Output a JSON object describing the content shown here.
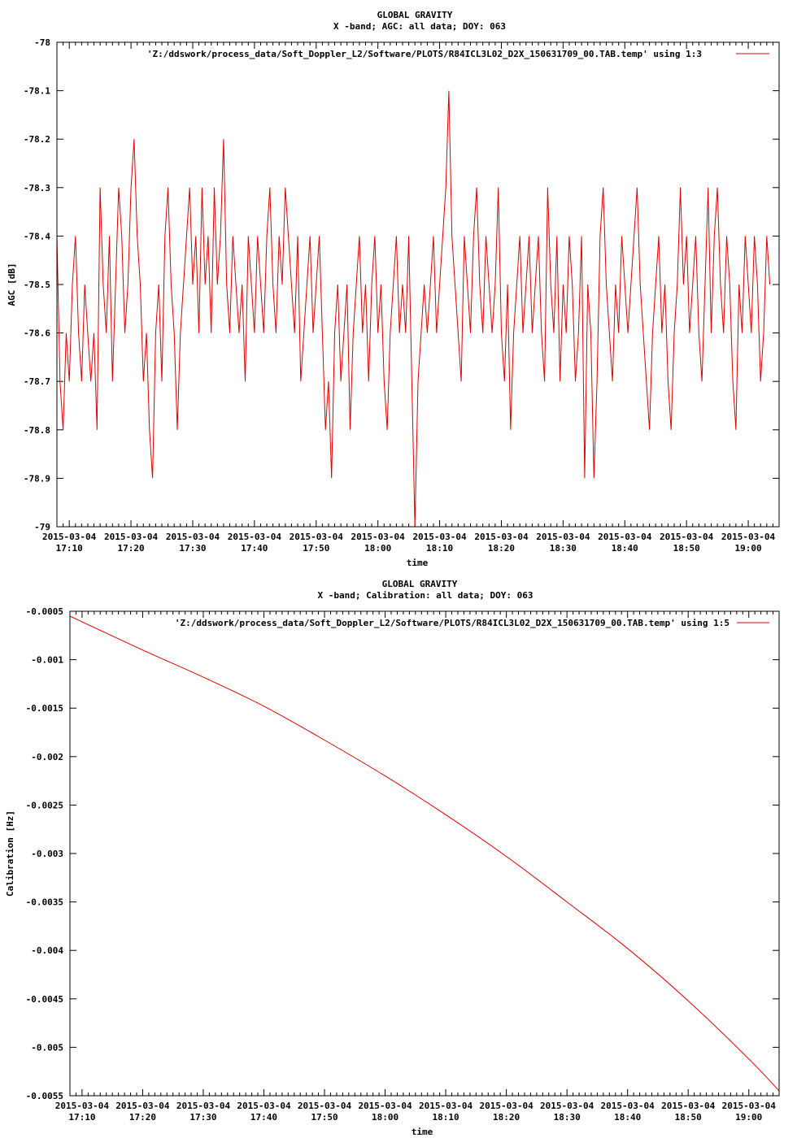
{
  "chart_data": [
    {
      "type": "line",
      "title": "GLOBAL GRAVITY",
      "subtitle": "X -band; AGC: all data; DOY: 063",
      "xlabel": "time",
      "ylabel": "AGC [dB]",
      "ylim": [
        -79,
        -78
      ],
      "xlim": [
        "2015-03-04 17:08",
        "2015-03-04 19:05"
      ],
      "yticks": [
        -79,
        -78.9,
        -78.8,
        -78.7,
        -78.6,
        -78.5,
        -78.4,
        -78.3,
        -78.2,
        -78.1,
        -78
      ],
      "ytick_labels": [
        "-79",
        "-78.9",
        "-78.8",
        "-78.7",
        "-78.6",
        "-78.5",
        "-78.4",
        "-78.3",
        "-78.2",
        "-78.1",
        "-78"
      ],
      "xticks": [
        "17:10",
        "17:20",
        "17:30",
        "17:40",
        "17:50",
        "18:00",
        "18:10",
        "18:20",
        "18:30",
        "18:40",
        "18:50",
        "19:00"
      ],
      "xtick_date": "2015-03-04",
      "grid": false,
      "legend_position": "top-right",
      "series": [
        {
          "name": "'Z:/ddswork/process_data/Soft_Doppler_L2/Software/PLOTS/R84ICL3L02_D2X_150631709_00.TAB.temp' using 1:3",
          "color": "#dd0000",
          "x_start": "17:08",
          "x_step_minutes": 0.5,
          "values": [
            -78.4,
            -78.7,
            -78.8,
            -78.6,
            -78.7,
            -78.5,
            -78.4,
            -78.6,
            -78.7,
            -78.5,
            -78.6,
            -78.7,
            -78.6,
            -78.8,
            -78.3,
            -78.5,
            -78.6,
            -78.4,
            -78.7,
            -78.5,
            -78.3,
            -78.4,
            -78.6,
            -78.5,
            -78.3,
            -78.2,
            -78.4,
            -78.5,
            -78.7,
            -78.6,
            -78.8,
            -78.9,
            -78.6,
            -78.5,
            -78.7,
            -78.4,
            -78.3,
            -78.5,
            -78.6,
            -78.8,
            -78.6,
            -78.5,
            -78.4,
            -78.3,
            -78.5,
            -78.4,
            -78.6,
            -78.3,
            -78.5,
            -78.4,
            -78.6,
            -78.3,
            -78.5,
            -78.4,
            -78.2,
            -78.5,
            -78.6,
            -78.4,
            -78.5,
            -78.6,
            -78.5,
            -78.7,
            -78.4,
            -78.5,
            -78.6,
            -78.4,
            -78.5,
            -78.6,
            -78.4,
            -78.3,
            -78.5,
            -78.6,
            -78.4,
            -78.5,
            -78.3,
            -78.4,
            -78.5,
            -78.6,
            -78.4,
            -78.7,
            -78.6,
            -78.5,
            -78.4,
            -78.6,
            -78.5,
            -78.4,
            -78.6,
            -78.8,
            -78.7,
            -78.9,
            -78.6,
            -78.5,
            -78.7,
            -78.6,
            -78.5,
            -78.8,
            -78.6,
            -78.5,
            -78.4,
            -78.6,
            -78.5,
            -78.7,
            -78.5,
            -78.4,
            -78.6,
            -78.5,
            -78.7,
            -78.8,
            -78.6,
            -78.5,
            -78.4,
            -78.6,
            -78.5,
            -78.6,
            -78.4,
            -78.7,
            -79.0,
            -78.7,
            -78.6,
            -78.5,
            -78.6,
            -78.5,
            -78.4,
            -78.6,
            -78.5,
            -78.4,
            -78.3,
            -78.1,
            -78.4,
            -78.5,
            -78.6,
            -78.7,
            -78.4,
            -78.5,
            -78.6,
            -78.4,
            -78.3,
            -78.5,
            -78.6,
            -78.4,
            -78.5,
            -78.6,
            -78.5,
            -78.3,
            -78.6,
            -78.7,
            -78.5,
            -78.8,
            -78.6,
            -78.5,
            -78.4,
            -78.6,
            -78.5,
            -78.4,
            -78.6,
            -78.5,
            -78.4,
            -78.6,
            -78.7,
            -78.3,
            -78.5,
            -78.6,
            -78.4,
            -78.7,
            -78.5,
            -78.6,
            -78.4,
            -78.5,
            -78.7,
            -78.6,
            -78.4,
            -78.9,
            -78.5,
            -78.6,
            -78.9,
            -78.7,
            -78.4,
            -78.3,
            -78.5,
            -78.6,
            -78.7,
            -78.5,
            -78.6,
            -78.4,
            -78.5,
            -78.6,
            -78.5,
            -78.4,
            -78.3,
            -78.5,
            -78.6,
            -78.7,
            -78.8,
            -78.6,
            -78.5,
            -78.4,
            -78.6,
            -78.5,
            -78.7,
            -78.8,
            -78.6,
            -78.5,
            -78.3,
            -78.5,
            -78.4,
            -78.6,
            -78.5,
            -78.4,
            -78.6,
            -78.7,
            -78.5,
            -78.3,
            -78.6,
            -78.4,
            -78.3,
            -78.5,
            -78.6,
            -78.4,
            -78.5,
            -78.7,
            -78.8,
            -78.5,
            -78.6,
            -78.4,
            -78.5,
            -78.6,
            -78.4,
            -78.5,
            -78.7,
            -78.6,
            -78.4,
            -78.5
          ]
        }
      ]
    },
    {
      "type": "line",
      "title": "GLOBAL GRAVITY",
      "subtitle": "X -band; Calibration: all data; DOY: 063",
      "xlabel": "time",
      "ylabel": "Calibration [Hz]",
      "ylim": [
        -0.0055,
        -0.0005
      ],
      "xlim": [
        "2015-03-04 17:08",
        "2015-03-04 19:05"
      ],
      "yticks": [
        -0.0055,
        -0.005,
        -0.0045,
        -0.004,
        -0.0035,
        -0.003,
        -0.0025,
        -0.002,
        -0.0015,
        -0.001,
        -0.0005
      ],
      "ytick_labels": [
        "-0.0055",
        "-0.005",
        "-0.0045",
        "-0.004",
        "-0.0035",
        "-0.003",
        "-0.0025",
        "-0.002",
        "-0.0015",
        "-0.001",
        "-0.0005"
      ],
      "xticks": [
        "17:10",
        "17:20",
        "17:30",
        "17:40",
        "17:50",
        "18:00",
        "18:10",
        "18:20",
        "18:30",
        "18:40",
        "18:50",
        "19:00"
      ],
      "xtick_date": "2015-03-04",
      "grid": false,
      "legend_position": "top-right",
      "series": [
        {
          "name": "'Z:/ddswork/process_data/Soft_Doppler_L2/Software/PLOTS/R84ICL3L02_D2X_150631709_00.TAB.temp' using 1:5",
          "color": "#dd0000",
          "x": [
            "17:08",
            "17:20",
            "17:30",
            "17:40",
            "17:50",
            "18:00",
            "18:10",
            "18:20",
            "18:30",
            "18:40",
            "18:50",
            "19:00",
            "19:05"
          ],
          "values": [
            -0.00055,
            -0.0009,
            -0.00118,
            -0.00148,
            -0.00183,
            -0.0022,
            -0.0026,
            -0.00303,
            -0.0035,
            -0.00398,
            -0.00452,
            -0.00512,
            -0.00545
          ]
        }
      ]
    }
  ]
}
